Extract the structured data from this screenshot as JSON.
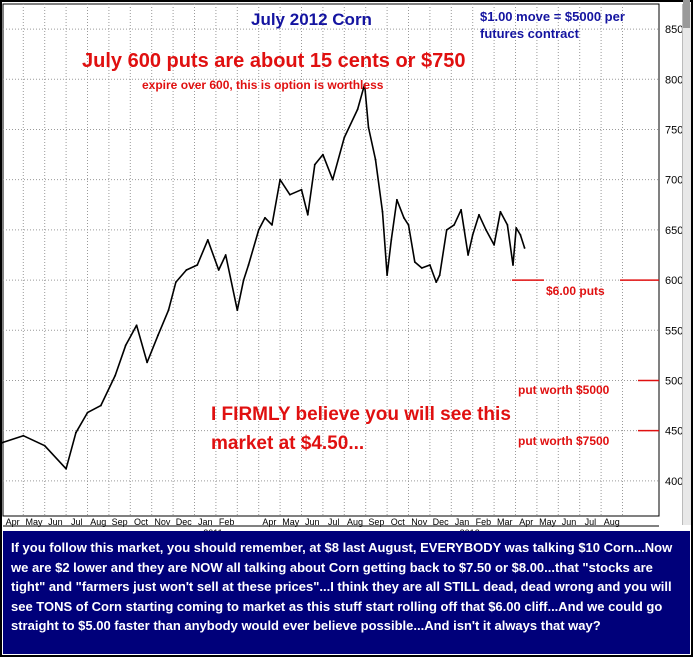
{
  "chart_data": {
    "type": "line",
    "title": "July 2012 Corn",
    "xlabel": "",
    "ylabel": "",
    "x_range": [
      "2010-04-01",
      "2012-09-01"
    ],
    "ylim": [
      365,
      875
    ],
    "yticks": [
      400,
      450,
      500,
      550,
      600,
      650,
      700,
      750,
      800,
      850
    ],
    "month_ticks": [
      "Apr",
      "May",
      "Jun",
      "Jul",
      "Aug",
      "Sep",
      "Oct",
      "Nov",
      "Dec",
      "Jan",
      "Feb",
      "Apr",
      "May",
      "Jun",
      "Jul",
      "Aug",
      "Sep",
      "Oct",
      "Nov",
      "Dec",
      "Jan",
      "Feb",
      "Mar",
      "Apr",
      "May",
      "Jun",
      "Jul",
      "Aug"
    ],
    "year_labels": [
      "2011",
      "2012"
    ],
    "grid": true,
    "series": [
      {
        "color": "#000000",
        "x": [
          "2010-03-01",
          "2010-04-01",
          "2010-05-01",
          "2010-06-01",
          "2010-07-01",
          "2010-07-15",
          "2010-08-01",
          "2010-08-20",
          "2010-09-10",
          "2010-09-25",
          "2010-10-10",
          "2010-10-25",
          "2010-11-10",
          "2010-11-25",
          "2010-12-05",
          "2010-12-20",
          "2011-01-05",
          "2011-01-20",
          "2011-02-05",
          "2011-02-15",
          "2011-03-01",
          "2011-03-10",
          "2011-03-17",
          "2011-04-01",
          "2011-04-10",
          "2011-04-20",
          "2011-05-01",
          "2011-05-15",
          "2011-06-01",
          "2011-06-10",
          "2011-06-20",
          "2011-07-01",
          "2011-07-15",
          "2011-08-01",
          "2011-08-20",
          "2011-08-30",
          "2011-09-05",
          "2011-09-15",
          "2011-09-25",
          "2011-10-01",
          "2011-10-07",
          "2011-10-15",
          "2011-10-25",
          "2011-11-01",
          "2011-11-10",
          "2011-11-20",
          "2011-12-01",
          "2011-12-10",
          "2011-12-15",
          "2011-12-25",
          "2012-01-05",
          "2012-01-15",
          "2012-01-25",
          "2012-02-01",
          "2012-02-10",
          "2012-02-20",
          "2012-03-01",
          "2012-03-10",
          "2012-03-20",
          "2012-03-28",
          "2012-04-02",
          "2012-04-08",
          "2012-04-14"
        ],
        "y": [
          440,
          438,
          445,
          435,
          412,
          448,
          468,
          475,
          505,
          535,
          555,
          518,
          545,
          570,
          598,
          610,
          615,
          640,
          610,
          625,
          570,
          600,
          615,
          650,
          662,
          655,
          700,
          685,
          690,
          665,
          715,
          725,
          700,
          742,
          770,
          795,
          752,
          720,
          668,
          605,
          640,
          680,
          662,
          655,
          618,
          612,
          615,
          598,
          605,
          650,
          655,
          670,
          625,
          645,
          665,
          650,
          635,
          668,
          655,
          615,
          652,
          645,
          632
        ]
      }
    ],
    "annotations": {
      "move_note": "$1.00 move = $5000 per futures contract",
      "puts_headline": "July 600 puts are about 15 cents or $750",
      "puts_subline": "expire over 600, this is option is worthless",
      "puts_level": "$6.00 puts",
      "put_5000": "put worth $5000",
      "put_7500": "put worth $7500",
      "belief": "I FIRMLY believe you will see this market at $4.50..."
    },
    "reference_levels": [
      600,
      500,
      450
    ]
  },
  "footer": {
    "text": "If you follow this market, you should remember, at $8 last August, EVERYBODY was talking $10 Corn...Now we are $2 lower and they are NOW all talking about Corn getting back to $7.50 or $8.00...that \"stocks are tight\" and \"farmers just won't sell at these prices\"...I think they are all STILL dead, dead wrong and you will see TONS of Corn starting coming to market as this stuff start rolling off that $6.00 cliff...And we could go straight to $5.00 faster than anybody would ever believe possible...And isn't it always that way?"
  },
  "colors": {
    "title_blue": "#1414a0",
    "annotation_red": "#e01010",
    "footer_bg": "#00007a",
    "footer_text": "#ffffff",
    "grid": "#9a9a9a",
    "line": "#000000"
  }
}
